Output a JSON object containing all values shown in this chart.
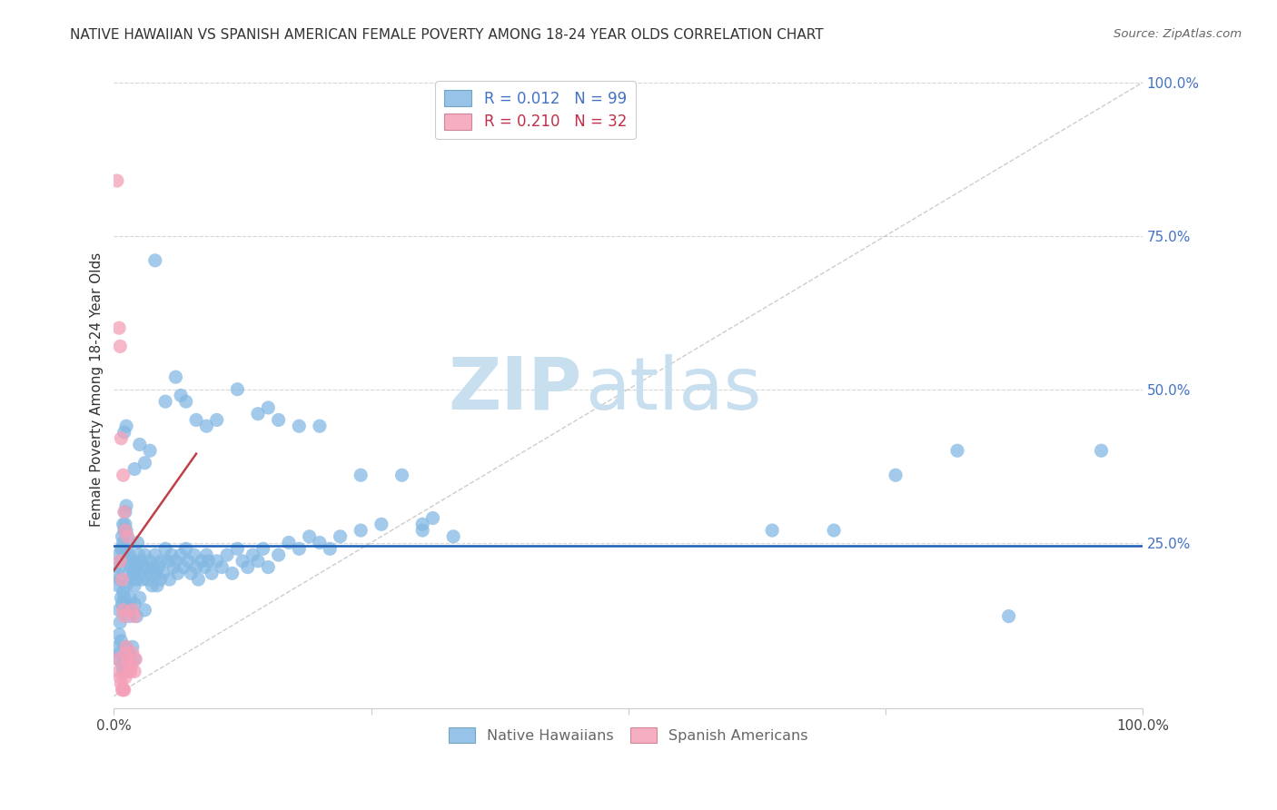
{
  "title": "NATIVE HAWAIIAN VS SPANISH AMERICAN FEMALE POVERTY AMONG 18-24 YEAR OLDS CORRELATION CHART",
  "source": "Source: ZipAtlas.com",
  "ylabel": "Female Poverty Among 18-24 Year Olds",
  "xlim": [
    0,
    1
  ],
  "ylim": [
    -0.02,
    1.02
  ],
  "blue_line_y": 0.245,
  "blue_line_color": "#1a5fb4",
  "diagonal_line_color": "#c8c8c8",
  "pink_line_color": "#c0404a",
  "pink_trendline_x": [
    0.0,
    0.08
  ],
  "pink_trendline_y": [
    0.205,
    0.395
  ],
  "grid_color": "#cccccc",
  "watermark_zip": "ZIP",
  "watermark_atlas": "atlas",
  "watermark_color": "#c8dff0",
  "blue_scatter_color": "#84b9e3",
  "pink_scatter_color": "#f4a0b8",
  "scatter_alpha": 0.75,
  "scatter_size": 120,
  "nh_scatter": [
    [
      0.003,
      0.2
    ],
    [
      0.004,
      0.18
    ],
    [
      0.005,
      0.23
    ],
    [
      0.005,
      0.21
    ],
    [
      0.006,
      0.19
    ],
    [
      0.007,
      0.24
    ],
    [
      0.007,
      0.22
    ],
    [
      0.008,
      0.26
    ],
    [
      0.008,
      0.24
    ],
    [
      0.009,
      0.28
    ],
    [
      0.009,
      0.25
    ],
    [
      0.01,
      0.27
    ],
    [
      0.01,
      0.23
    ],
    [
      0.011,
      0.3
    ],
    [
      0.011,
      0.28
    ],
    [
      0.012,
      0.31
    ],
    [
      0.012,
      0.27
    ],
    [
      0.013,
      0.26
    ],
    [
      0.013,
      0.24
    ],
    [
      0.014,
      0.22
    ],
    [
      0.015,
      0.2
    ],
    [
      0.015,
      0.23
    ],
    [
      0.016,
      0.21
    ],
    [
      0.017,
      0.19
    ],
    [
      0.018,
      0.22
    ],
    [
      0.019,
      0.2
    ],
    [
      0.02,
      0.18
    ],
    [
      0.021,
      0.21
    ],
    [
      0.022,
      0.19
    ],
    [
      0.023,
      0.25
    ],
    [
      0.024,
      0.23
    ],
    [
      0.025,
      0.2
    ],
    [
      0.026,
      0.22
    ],
    [
      0.027,
      0.21
    ],
    [
      0.028,
      0.19
    ],
    [
      0.03,
      0.23
    ],
    [
      0.032,
      0.21
    ],
    [
      0.033,
      0.19
    ],
    [
      0.035,
      0.22
    ],
    [
      0.036,
      0.2
    ],
    [
      0.037,
      0.18
    ],
    [
      0.038,
      0.21
    ],
    [
      0.04,
      0.23
    ],
    [
      0.041,
      0.2
    ],
    [
      0.042,
      0.18
    ],
    [
      0.043,
      0.21
    ],
    [
      0.045,
      0.19
    ],
    [
      0.046,
      0.22
    ],
    [
      0.048,
      0.2
    ],
    [
      0.05,
      0.24
    ],
    [
      0.052,
      0.22
    ],
    [
      0.054,
      0.19
    ],
    [
      0.056,
      0.23
    ],
    [
      0.058,
      0.21
    ],
    [
      0.06,
      0.22
    ],
    [
      0.062,
      0.2
    ],
    [
      0.065,
      0.23
    ],
    [
      0.068,
      0.21
    ],
    [
      0.07,
      0.24
    ],
    [
      0.072,
      0.22
    ],
    [
      0.075,
      0.2
    ],
    [
      0.078,
      0.23
    ],
    [
      0.08,
      0.21
    ],
    [
      0.082,
      0.19
    ],
    [
      0.085,
      0.22
    ],
    [
      0.088,
      0.21
    ],
    [
      0.09,
      0.23
    ],
    [
      0.092,
      0.22
    ],
    [
      0.095,
      0.2
    ],
    [
      0.1,
      0.22
    ],
    [
      0.105,
      0.21
    ],
    [
      0.11,
      0.23
    ],
    [
      0.115,
      0.2
    ],
    [
      0.12,
      0.24
    ],
    [
      0.125,
      0.22
    ],
    [
      0.13,
      0.21
    ],
    [
      0.135,
      0.23
    ],
    [
      0.14,
      0.22
    ],
    [
      0.145,
      0.24
    ],
    [
      0.15,
      0.21
    ],
    [
      0.16,
      0.23
    ],
    [
      0.17,
      0.25
    ],
    [
      0.18,
      0.24
    ],
    [
      0.19,
      0.26
    ],
    [
      0.2,
      0.25
    ],
    [
      0.21,
      0.24
    ],
    [
      0.22,
      0.26
    ],
    [
      0.24,
      0.27
    ],
    [
      0.26,
      0.28
    ],
    [
      0.3,
      0.27
    ],
    [
      0.33,
      0.26
    ],
    [
      0.005,
      0.14
    ],
    [
      0.006,
      0.12
    ],
    [
      0.007,
      0.16
    ],
    [
      0.008,
      0.15
    ],
    [
      0.009,
      0.17
    ],
    [
      0.01,
      0.16
    ],
    [
      0.011,
      0.14
    ],
    [
      0.012,
      0.18
    ],
    [
      0.013,
      0.15
    ],
    [
      0.015,
      0.13
    ],
    [
      0.016,
      0.16
    ],
    [
      0.018,
      0.14
    ],
    [
      0.02,
      0.15
    ],
    [
      0.022,
      0.13
    ],
    [
      0.025,
      0.16
    ],
    [
      0.03,
      0.14
    ],
    [
      0.003,
      0.08
    ],
    [
      0.004,
      0.06
    ],
    [
      0.005,
      0.1
    ],
    [
      0.006,
      0.07
    ],
    [
      0.007,
      0.09
    ],
    [
      0.008,
      0.05
    ],
    [
      0.009,
      0.04
    ],
    [
      0.01,
      0.06
    ],
    [
      0.011,
      0.08
    ],
    [
      0.012,
      0.05
    ],
    [
      0.014,
      0.07
    ],
    [
      0.016,
      0.06
    ],
    [
      0.018,
      0.08
    ],
    [
      0.02,
      0.06
    ],
    [
      0.01,
      0.43
    ],
    [
      0.012,
      0.44
    ],
    [
      0.02,
      0.37
    ],
    [
      0.025,
      0.41
    ],
    [
      0.03,
      0.38
    ],
    [
      0.035,
      0.4
    ],
    [
      0.05,
      0.48
    ],
    [
      0.04,
      0.71
    ],
    [
      0.06,
      0.52
    ],
    [
      0.065,
      0.49
    ],
    [
      0.07,
      0.48
    ],
    [
      0.08,
      0.45
    ],
    [
      0.09,
      0.44
    ],
    [
      0.1,
      0.45
    ],
    [
      0.12,
      0.5
    ],
    [
      0.14,
      0.46
    ],
    [
      0.15,
      0.47
    ],
    [
      0.16,
      0.45
    ],
    [
      0.18,
      0.44
    ],
    [
      0.2,
      0.44
    ],
    [
      0.24,
      0.36
    ],
    [
      0.28,
      0.36
    ],
    [
      0.3,
      0.28
    ],
    [
      0.31,
      0.29
    ],
    [
      0.64,
      0.27
    ],
    [
      0.7,
      0.27
    ],
    [
      0.76,
      0.36
    ],
    [
      0.82,
      0.4
    ],
    [
      0.87,
      0.13
    ],
    [
      0.96,
      0.4
    ]
  ],
  "sa_scatter": [
    [
      0.003,
      0.84
    ],
    [
      0.005,
      0.6
    ],
    [
      0.006,
      0.57
    ],
    [
      0.007,
      0.42
    ],
    [
      0.009,
      0.36
    ],
    [
      0.01,
      0.3
    ],
    [
      0.011,
      0.27
    ],
    [
      0.013,
      0.26
    ],
    [
      0.006,
      0.22
    ],
    [
      0.008,
      0.19
    ],
    [
      0.009,
      0.14
    ],
    [
      0.01,
      0.13
    ],
    [
      0.011,
      0.07
    ],
    [
      0.012,
      0.08
    ],
    [
      0.013,
      0.05
    ],
    [
      0.014,
      0.06
    ],
    [
      0.015,
      0.04
    ],
    [
      0.016,
      0.04
    ],
    [
      0.017,
      0.05
    ],
    [
      0.018,
      0.07
    ],
    [
      0.02,
      0.04
    ],
    [
      0.021,
      0.06
    ],
    [
      0.004,
      0.06
    ],
    [
      0.005,
      0.04
    ],
    [
      0.006,
      0.03
    ],
    [
      0.007,
      0.02
    ],
    [
      0.008,
      0.01
    ],
    [
      0.009,
      0.01
    ],
    [
      0.01,
      0.01
    ],
    [
      0.011,
      0.03
    ],
    [
      0.018,
      0.14
    ],
    [
      0.02,
      0.13
    ]
  ]
}
